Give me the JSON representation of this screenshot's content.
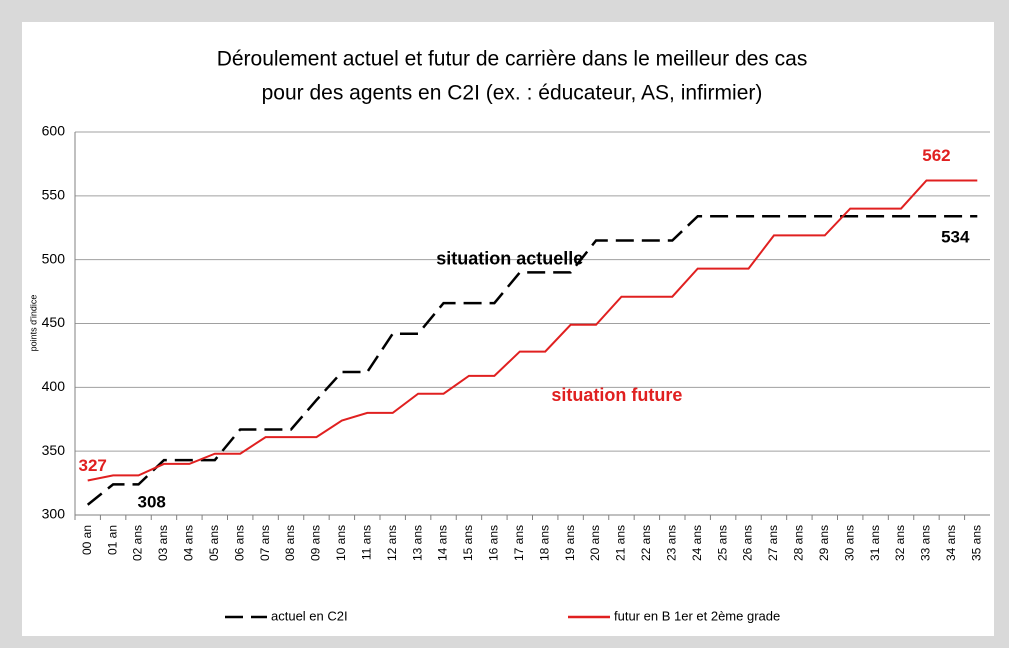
{
  "chart_data": {
    "type": "line",
    "title": [
      "Déroulement actuel et futur de carrière dans le meilleur des cas",
      "pour des agents en C2I (ex. : éducateur, AS, infirmier)"
    ],
    "y_label": "points d'indice",
    "categories": [
      "00 an",
      "01 an",
      "02 ans",
      "03 ans",
      "04 ans",
      "05 ans",
      "06 ans",
      "07 ans",
      "08 ans",
      "09 ans",
      "10 ans",
      "11 ans",
      "12 ans",
      "13 ans",
      "14 ans",
      "15 ans",
      "16 ans",
      "17 ans",
      "18 ans",
      "19 ans",
      "20 ans",
      "21 ans",
      "22 ans",
      "23 ans",
      "24 ans",
      "25 ans",
      "26 ans",
      "27 ans",
      "28 ans",
      "29 ans",
      "30 ans",
      "31 ans",
      "32 ans",
      "33 ans",
      "34 ans",
      "35 ans"
    ],
    "series": [
      {
        "name": "actuel en C2I",
        "color": "#000000",
        "dashed": true,
        "values": [
          308,
          324,
          324,
          343,
          343,
          343,
          367,
          367,
          367,
          390,
          412,
          412,
          442,
          442,
          466,
          466,
          466,
          490,
          490,
          490,
          515,
          515,
          515,
          515,
          534,
          534,
          534,
          534,
          534,
          534,
          534,
          534,
          534,
          534,
          534,
          534
        ]
      },
      {
        "name": "futur en B 1er et 2ème grade",
        "color": "#e02020",
        "dashed": false,
        "values": [
          327,
          331,
          331,
          340,
          340,
          348,
          348,
          361,
          361,
          361,
          374,
          380,
          380,
          395,
          395,
          409,
          409,
          428,
          428,
          449,
          449,
          471,
          471,
          471,
          493,
          493,
          493,
          519,
          519,
          519,
          540,
          540,
          540,
          562,
          562,
          562
        ]
      }
    ],
    "annotations": [
      {
        "text": "situation actuelle",
        "color": "#000000"
      },
      {
        "text": "situation future",
        "color": "#e02020"
      }
    ],
    "ylim": [
      300,
      600
    ],
    "yticks": [
      300,
      350,
      400,
      450,
      500,
      550,
      600
    ],
    "grid": true,
    "legend": "bottom"
  }
}
